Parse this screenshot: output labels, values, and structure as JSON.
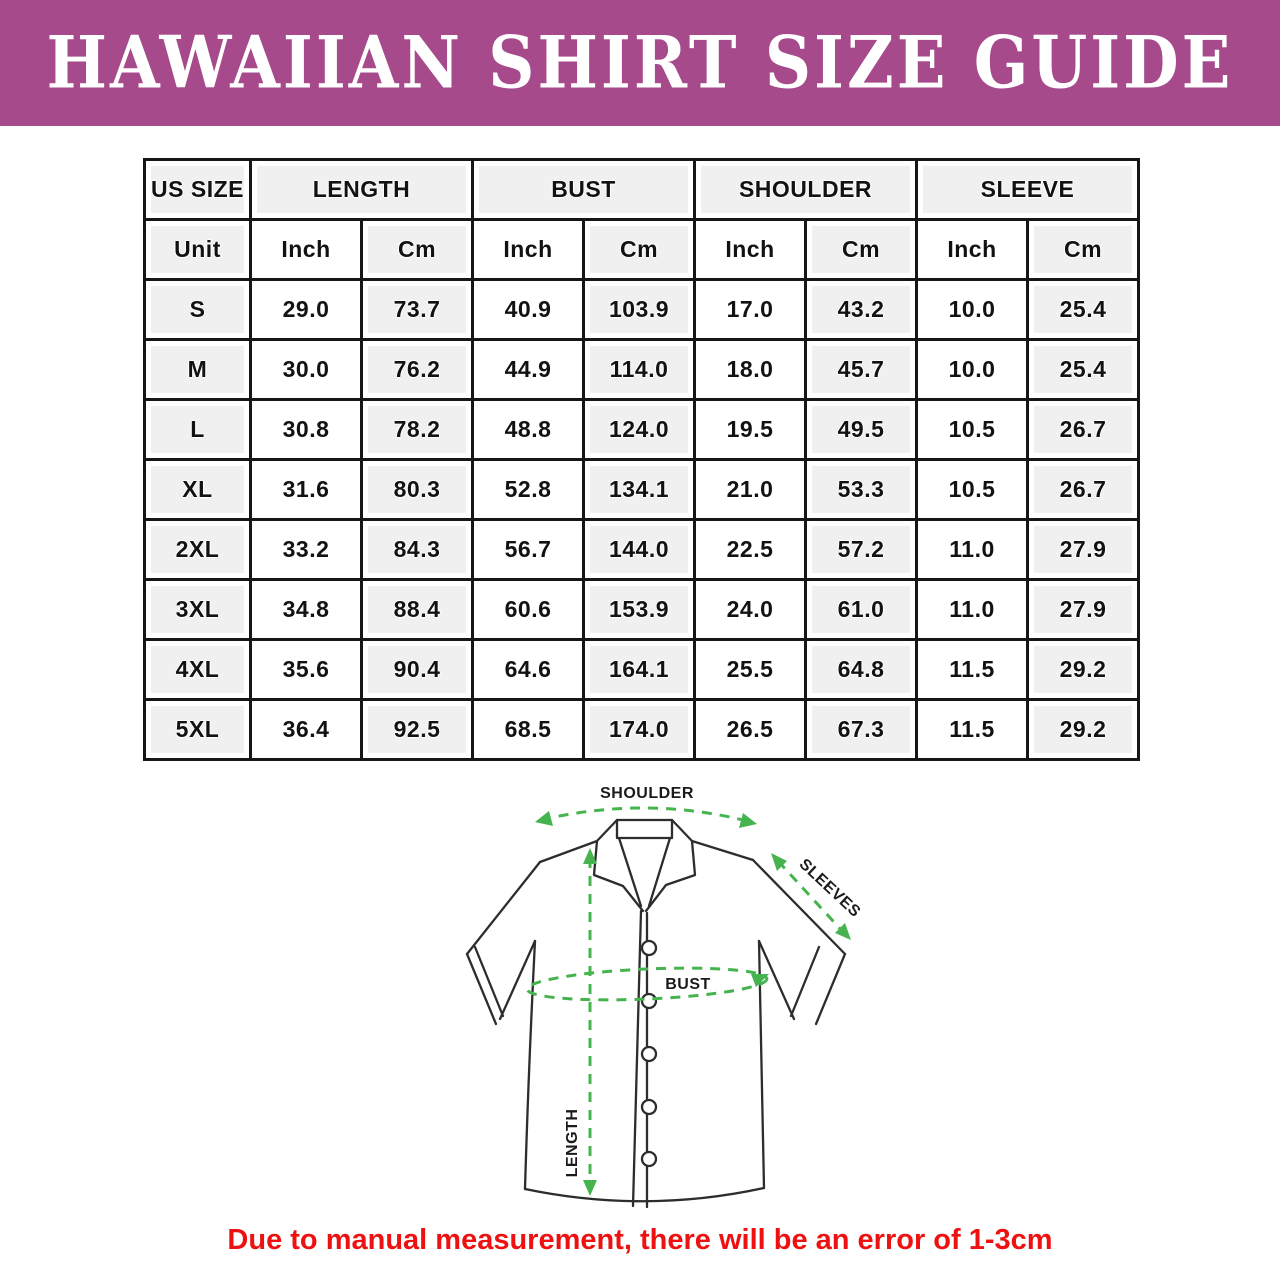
{
  "banner": {
    "title": "HAWAIIAN SHIRT SIZE GUIDE",
    "bg_color": "#a64a8c",
    "text_color": "#ffffff"
  },
  "size_table": {
    "group_headers": [
      {
        "label": "US SIZE",
        "span": 1
      },
      {
        "label": "LENGTH",
        "span": 2
      },
      {
        "label": "BUST",
        "span": 2
      },
      {
        "label": "SHOULDER",
        "span": 2
      },
      {
        "label": "SLEEVE",
        "span": 2
      }
    ],
    "unit_row": [
      "Unit",
      "Inch",
      "Cm",
      "Inch",
      "Cm",
      "Inch",
      "Cm",
      "Inch",
      "Cm"
    ],
    "rows": [
      {
        "size": "S",
        "values": [
          "29.0",
          "73.7",
          "40.9",
          "103.9",
          "17.0",
          "43.2",
          "10.0",
          "25.4"
        ]
      },
      {
        "size": "M",
        "values": [
          "30.0",
          "76.2",
          "44.9",
          "114.0",
          "18.0",
          "45.7",
          "10.0",
          "25.4"
        ]
      },
      {
        "size": "L",
        "values": [
          "30.8",
          "78.2",
          "48.8",
          "124.0",
          "19.5",
          "49.5",
          "10.5",
          "26.7"
        ]
      },
      {
        "size": "XL",
        "values": [
          "31.6",
          "80.3",
          "52.8",
          "134.1",
          "21.0",
          "53.3",
          "10.5",
          "26.7"
        ]
      },
      {
        "size": "2XL",
        "values": [
          "33.2",
          "84.3",
          "56.7",
          "144.0",
          "22.5",
          "57.2",
          "11.0",
          "27.9"
        ]
      },
      {
        "size": "3XL",
        "values": [
          "34.8",
          "88.4",
          "60.6",
          "153.9",
          "24.0",
          "61.0",
          "11.0",
          "27.9"
        ]
      },
      {
        "size": "4XL",
        "values": [
          "35.6",
          "90.4",
          "64.6",
          "164.1",
          "25.5",
          "64.8",
          "11.5",
          "29.2"
        ]
      },
      {
        "size": "5XL",
        "values": [
          "36.4",
          "92.5",
          "68.5",
          "174.0",
          "26.5",
          "67.3",
          "11.5",
          "29.2"
        ]
      }
    ]
  },
  "diagram": {
    "shoulder_label": "SHOULDER",
    "sleeves_label": "SLEEVES",
    "bust_label": "BUST",
    "length_label": "LENGTH",
    "arrow_color": "#46b44e",
    "outline_color": "#2d2d2d"
  },
  "footnote": {
    "text": "Due to manual measurement, there will be an error of 1-3cm",
    "color": "#ee1111"
  }
}
